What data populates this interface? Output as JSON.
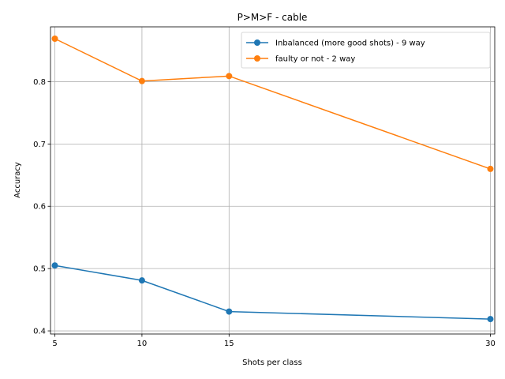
{
  "chart_data": {
    "type": "line",
    "title": "P>M>F - cable",
    "xlabel": "Shots per class",
    "ylabel": "Accuracy",
    "x": [
      5,
      10,
      15,
      30
    ],
    "xticks": [
      "5",
      "10",
      "15",
      "30"
    ],
    "yticks": [
      "0.4",
      "0.5",
      "0.6",
      "0.7",
      "0.8"
    ],
    "xlim": [
      4.75,
      30.25
    ],
    "ylim": [
      0.395,
      0.888
    ],
    "grid": true,
    "legend_position": "top-right",
    "series": [
      {
        "name": "Inbalanced (more good shots) - 9 way",
        "color": "#1f77b4",
        "values": [
          0.505,
          0.481,
          0.431,
          0.419
        ]
      },
      {
        "name": "faulty or not - 2 way",
        "color": "#ff7f0e",
        "values": [
          0.869,
          0.801,
          0.809,
          0.66
        ]
      }
    ]
  }
}
